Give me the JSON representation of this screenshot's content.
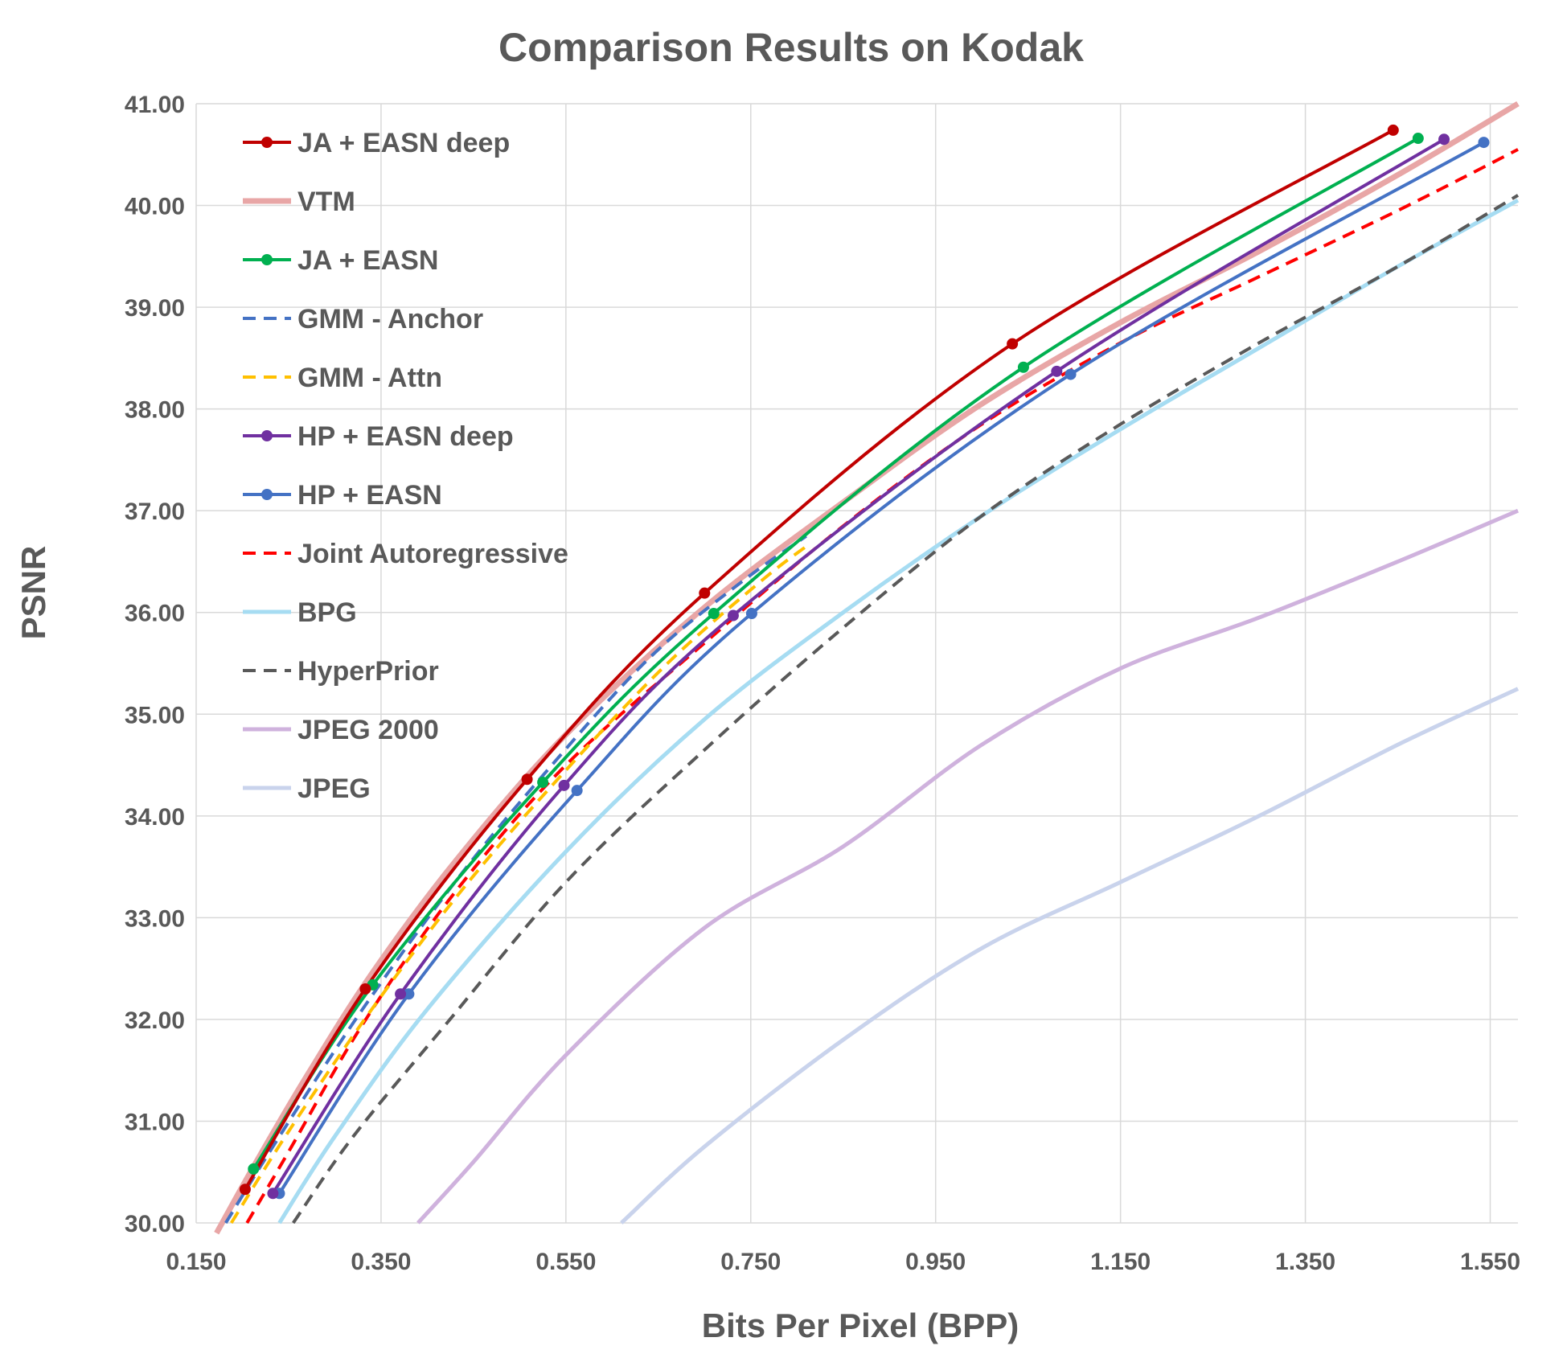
{
  "chart_data": {
    "type": "line",
    "title": "Comparison Results on Kodak",
    "xlabel": "Bits Per Pixel (BPP)",
    "ylabel": "PSNR",
    "xlim": [
      0.15,
      1.58
    ],
    "ylim": [
      30.0,
      41.0
    ],
    "x_ticks": [
      0.15,
      0.35,
      0.55,
      0.75,
      0.95,
      1.15,
      1.35,
      1.55
    ],
    "x_tick_labels": [
      "0.150",
      "0.350",
      "0.550",
      "0.750",
      "0.950",
      "1.150",
      "1.350",
      "1.550"
    ],
    "y_ticks": [
      30,
      31,
      32,
      33,
      34,
      35,
      36,
      37,
      38,
      39,
      40,
      41
    ],
    "y_tick_labels": [
      "30.00",
      "31.00",
      "32.00",
      "33.00",
      "34.00",
      "35.00",
      "36.00",
      "37.00",
      "38.00",
      "39.00",
      "40.00",
      "41.00"
    ],
    "grid": true,
    "legend_position": "top-left",
    "series": [
      {
        "name": "JA + EASN deep",
        "color": "#c00000",
        "width": 4,
        "dash": "",
        "markers": true,
        "opacity": 1,
        "points": [
          [
            0.203,
            30.33
          ],
          [
            0.333,
            32.3
          ],
          [
            0.508,
            34.36
          ],
          [
            0.7,
            36.19
          ],
          [
            1.033,
            38.64
          ],
          [
            1.445,
            40.74
          ]
        ]
      },
      {
        "name": "VTM",
        "color": "#e8a6a6",
        "width": 7,
        "dash": "",
        "markers": false,
        "opacity": 1,
        "points": [
          [
            0.172,
            29.9
          ],
          [
            0.215,
            30.6
          ],
          [
            0.27,
            31.45
          ],
          [
            0.34,
            32.45
          ],
          [
            0.43,
            33.55
          ],
          [
            0.55,
            34.8
          ],
          [
            0.7,
            36.05
          ],
          [
            0.86,
            37.15
          ],
          [
            1.0,
            38.05
          ],
          [
            1.15,
            38.85
          ],
          [
            1.3,
            39.55
          ],
          [
            1.45,
            40.3
          ],
          [
            1.58,
            41.0
          ]
        ]
      },
      {
        "name": "JA + EASN",
        "color": "#00b050",
        "width": 4,
        "dash": "",
        "markers": true,
        "opacity": 1,
        "points": [
          [
            0.212,
            30.53
          ],
          [
            0.341,
            32.34
          ],
          [
            0.525,
            34.33
          ],
          [
            0.71,
            35.99
          ],
          [
            1.045,
            38.41
          ],
          [
            1.472,
            40.66
          ]
        ]
      },
      {
        "name": "GMM - Anchor",
        "color": "#4472c4",
        "width": 4,
        "dash": "16 10",
        "markers": false,
        "opacity": 1,
        "points": [
          [
            0.182,
            30.0
          ],
          [
            0.24,
            30.85
          ],
          [
            0.33,
            32.1
          ],
          [
            0.43,
            33.35
          ],
          [
            0.53,
            34.45
          ],
          [
            0.64,
            35.55
          ],
          [
            0.74,
            36.3
          ],
          [
            0.81,
            36.75
          ]
        ]
      },
      {
        "name": "GMM - Attn",
        "color": "#ffc000",
        "width": 4,
        "dash": "16 10",
        "markers": false,
        "opacity": 1,
        "points": [
          [
            0.188,
            30.0
          ],
          [
            0.25,
            30.9
          ],
          [
            0.34,
            32.1
          ],
          [
            0.44,
            33.3
          ],
          [
            0.55,
            34.45
          ],
          [
            0.66,
            35.5
          ],
          [
            0.76,
            36.3
          ],
          [
            0.81,
            36.65
          ]
        ]
      },
      {
        "name": "HP + EASN deep",
        "color": "#7030a0",
        "width": 4,
        "dash": "",
        "markers": true,
        "opacity": 1,
        "points": [
          [
            0.233,
            30.29
          ],
          [
            0.371,
            32.25
          ],
          [
            0.548,
            34.3
          ],
          [
            0.731,
            35.97
          ],
          [
            1.081,
            38.37
          ],
          [
            1.5,
            40.65
          ]
        ]
      },
      {
        "name": "HP + EASN",
        "color": "#4472c4",
        "width": 4,
        "dash": "",
        "markers": true,
        "opacity": 1,
        "points": [
          [
            0.24,
            30.29
          ],
          [
            0.38,
            32.25
          ],
          [
            0.562,
            34.25
          ],
          [
            0.751,
            35.99
          ],
          [
            1.096,
            38.34
          ],
          [
            1.543,
            40.62
          ]
        ]
      },
      {
        "name": "Joint Autoregressive",
        "color": "#ff0000",
        "width": 4,
        "dash": "16 10",
        "markers": false,
        "opacity": 1,
        "points": [
          [
            0.205,
            30.0
          ],
          [
            0.25,
            30.7
          ],
          [
            0.33,
            31.95
          ],
          [
            0.43,
            33.25
          ],
          [
            0.55,
            34.5
          ],
          [
            0.7,
            35.7
          ],
          [
            0.85,
            36.85
          ],
          [
            1.0,
            37.85
          ],
          [
            1.15,
            38.65
          ],
          [
            1.3,
            39.3
          ],
          [
            1.45,
            39.95
          ],
          [
            1.58,
            40.55
          ]
        ]
      },
      {
        "name": "BPG",
        "color": "#a6dcf2",
        "width": 5,
        "dash": "",
        "markers": false,
        "opacity": 1,
        "points": [
          [
            0.24,
            30.0
          ],
          [
            0.3,
            30.85
          ],
          [
            0.4,
            32.1
          ],
          [
            0.55,
            33.65
          ],
          [
            0.7,
            34.95
          ],
          [
            0.85,
            36.0
          ],
          [
            1.0,
            36.95
          ],
          [
            1.15,
            37.8
          ],
          [
            1.3,
            38.6
          ],
          [
            1.45,
            39.4
          ],
          [
            1.58,
            40.05
          ]
        ]
      },
      {
        "name": "HyperPrior",
        "color": "#595959",
        "width": 4,
        "dash": "16 10",
        "markers": false,
        "opacity": 1,
        "points": [
          [
            0.255,
            30.0
          ],
          [
            0.32,
            30.85
          ],
          [
            0.42,
            31.95
          ],
          [
            0.55,
            33.35
          ],
          [
            0.7,
            34.65
          ],
          [
            0.85,
            35.85
          ],
          [
            1.0,
            36.95
          ],
          [
            1.15,
            37.85
          ],
          [
            1.3,
            38.65
          ],
          [
            1.45,
            39.4
          ],
          [
            1.58,
            40.1
          ]
        ]
      },
      {
        "name": "JPEG 2000",
        "color": "#cfb2dd",
        "width": 5,
        "dash": "",
        "markers": false,
        "opacity": 1,
        "points": [
          [
            0.39,
            30.0
          ],
          [
            0.45,
            30.6
          ],
          [
            0.55,
            31.65
          ],
          [
            0.7,
            32.9
          ],
          [
            0.85,
            33.7
          ],
          [
            1.0,
            34.7
          ],
          [
            1.15,
            35.45
          ],
          [
            1.3,
            35.95
          ],
          [
            1.45,
            36.5
          ],
          [
            1.58,
            37.0
          ]
        ]
      },
      {
        "name": "JPEG",
        "color": "#c9d3ec",
        "width": 5,
        "dash": "",
        "markers": false,
        "opacity": 1,
        "points": [
          [
            0.61,
            30.0
          ],
          [
            0.7,
            30.75
          ],
          [
            0.85,
            31.8
          ],
          [
            1.0,
            32.7
          ],
          [
            1.15,
            33.35
          ],
          [
            1.3,
            34.0
          ],
          [
            1.45,
            34.7
          ],
          [
            1.58,
            35.25
          ]
        ]
      }
    ]
  }
}
